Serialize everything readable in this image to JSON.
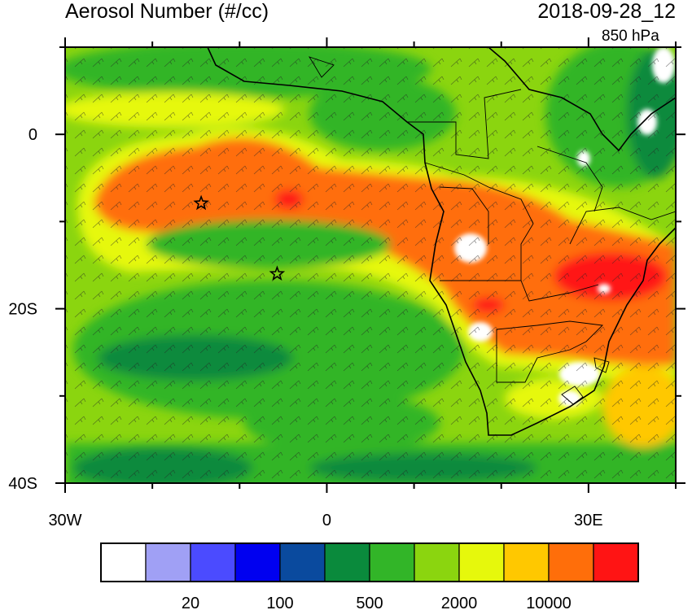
{
  "title": "Aerosol Number (#/cc)",
  "datetime": "2018-09-28_12",
  "level": "850 hPa",
  "map": {
    "lon_range": [
      -30,
      40
    ],
    "lat_range": [
      -40,
      10
    ],
    "x_ticks": [
      {
        "value": -30,
        "label": "30W"
      },
      {
        "value": 0,
        "label": "0"
      },
      {
        "value": 30,
        "label": "30E"
      }
    ],
    "y_ticks": [
      {
        "value": 0,
        "label": "0"
      },
      {
        "value": -20,
        "label": "20S"
      },
      {
        "value": -40,
        "label": "40S"
      }
    ],
    "minor_lon_step": 10,
    "minor_lat_step": 10,
    "stations": [
      {
        "lon": -14.4,
        "lat": -7.9
      },
      {
        "lon": -5.7,
        "lat": -16.0
      }
    ]
  },
  "colorbar": {
    "colors": [
      "#ffffff",
      "#a0a0f5",
      "#4b4bff",
      "#0000f0",
      "#0a4a9e",
      "#0a8a3c",
      "#32b528",
      "#8bd50f",
      "#e6f80c",
      "#ffc800",
      "#ff6e0a",
      "#ff1414"
    ],
    "labels": [
      {
        "index": 2,
        "text": "20"
      },
      {
        "index": 4,
        "text": "100"
      },
      {
        "index": 6,
        "text": "500"
      },
      {
        "index": 8,
        "text": "2000"
      },
      {
        "index": 10,
        "text": "10000"
      }
    ]
  }
}
